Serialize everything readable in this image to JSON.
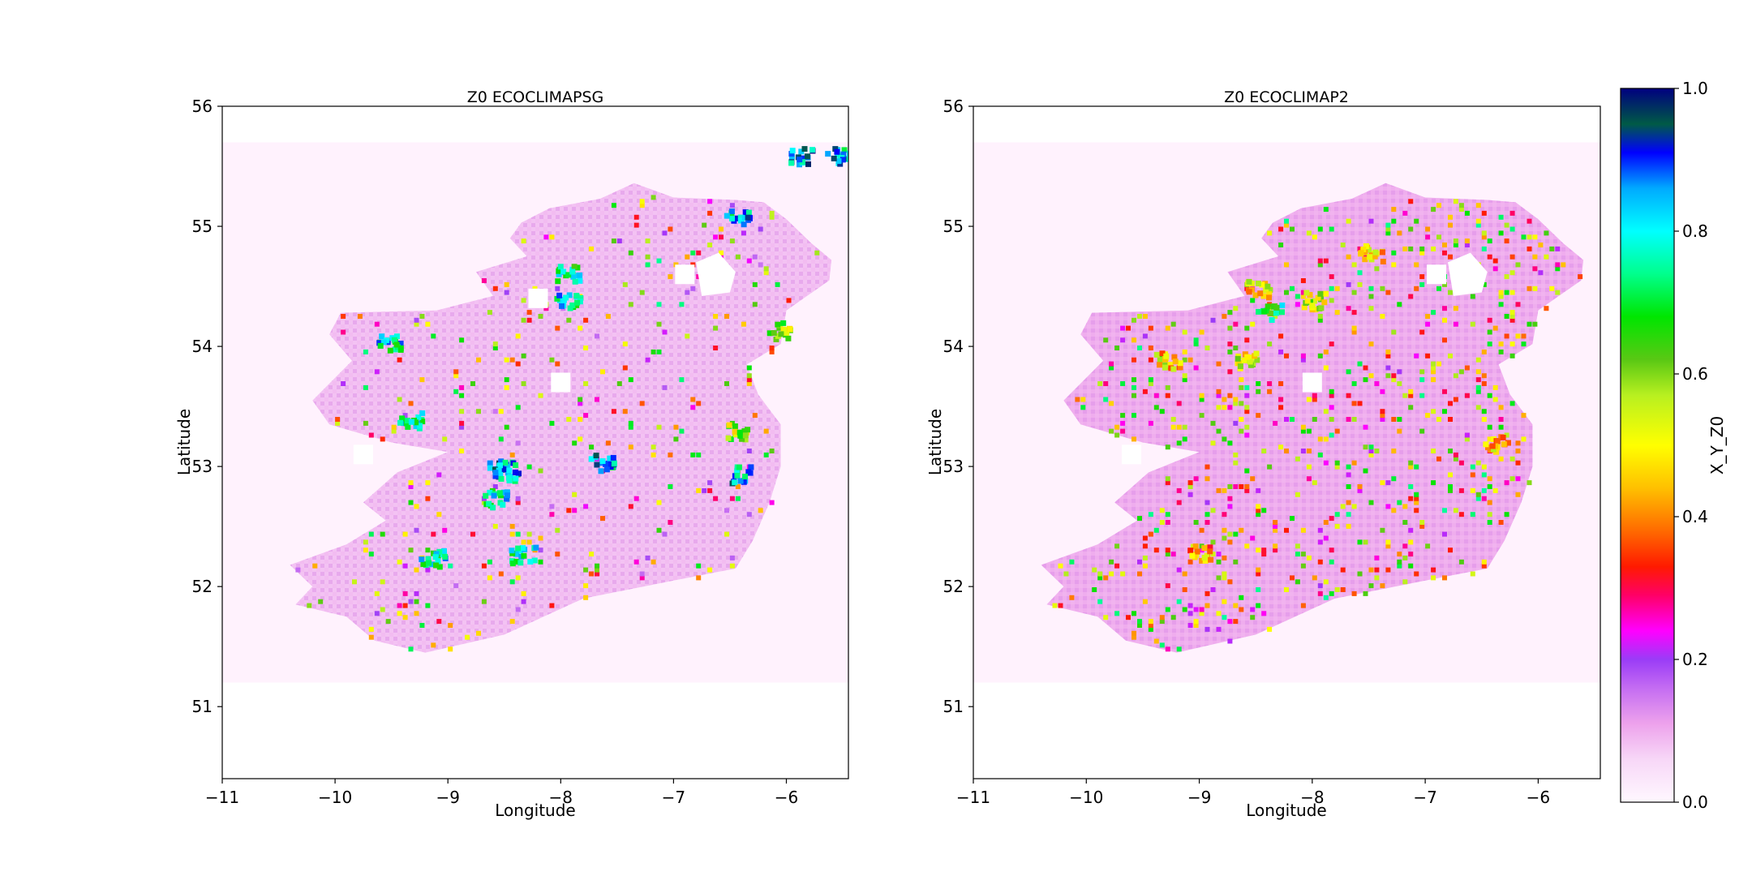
{
  "chart_data": [
    {
      "type": "heatmap",
      "title": "Z0 ECOCLIMAPSG",
      "xlabel": "Longitude",
      "ylabel": "Latitude",
      "xlim": [
        -11,
        -5.45
      ],
      "ylim": [
        50.4,
        56
      ],
      "xticks": [
        -11,
        -10,
        -9,
        -8,
        -7,
        -6
      ],
      "xtick_labels": [
        "−11",
        "−10",
        "−9",
        "−8",
        "−7",
        "−6"
      ],
      "yticks": [
        51,
        52,
        53,
        54,
        55,
        56
      ],
      "ytick_labels": [
        "51",
        "52",
        "53",
        "54",
        "55",
        "56"
      ],
      "data_extent": {
        "lon": [
          -11,
          -5.45
        ],
        "lat": [
          51.2,
          55.7
        ]
      },
      "typical_value": 0.08,
      "hotspots": [
        {
          "lon": -8.55,
          "lat": 53.0,
          "value": 0.98
        },
        {
          "lon": -8.5,
          "lat": 52.97,
          "value": 0.95
        },
        {
          "lon": -6.45,
          "lat": 53.3,
          "value": 0.7
        },
        {
          "lon": -6.4,
          "lat": 52.95,
          "value": 0.95
        },
        {
          "lon": -9.55,
          "lat": 54.05,
          "value": 0.9
        },
        {
          "lon": -9.35,
          "lat": 53.4,
          "value": 0.9
        },
        {
          "lon": -7.65,
          "lat": 53.05,
          "value": 0.95
        },
        {
          "lon": -6.45,
          "lat": 55.08,
          "value": 0.95
        },
        {
          "lon": -5.9,
          "lat": 55.6,
          "value": 1.0
        },
        {
          "lon": -5.55,
          "lat": 55.6,
          "value": 0.95
        },
        {
          "lon": -7.95,
          "lat": 54.4,
          "value": 0.9
        },
        {
          "lon": -7.95,
          "lat": 54.63,
          "value": 0.85
        },
        {
          "lon": -8.35,
          "lat": 52.28,
          "value": 0.9
        },
        {
          "lon": -9.15,
          "lat": 52.25,
          "value": 0.9
        },
        {
          "lon": -8.6,
          "lat": 52.75,
          "value": 0.9
        },
        {
          "lon": -6.1,
          "lat": 54.15,
          "value": 0.7
        }
      ],
      "holes": [
        {
          "lon": -6.9,
          "lat": 54.6
        },
        {
          "lon": -8.2,
          "lat": 54.4
        },
        {
          "lon": -8.0,
          "lat": 53.7
        },
        {
          "lon": -9.75,
          "lat": 53.1
        }
      ]
    },
    {
      "type": "heatmap",
      "title": "Z0 ECOCLIMAP2",
      "xlabel": "Longitude",
      "ylabel": "Latitude",
      "xlim": [
        -11,
        -5.45
      ],
      "ylim": [
        50.4,
        56
      ],
      "xticks": [
        -11,
        -10,
        -9,
        -8,
        -7,
        -6
      ],
      "xtick_labels": [
        "−11",
        "−10",
        "−9",
        "−8",
        "−7",
        "−6"
      ],
      "yticks": [
        51,
        52,
        53,
        54,
        55,
        56
      ],
      "ytick_labels": [
        "51",
        "52",
        "53",
        "54",
        "55",
        "56"
      ],
      "data_extent": {
        "lon": [
          -11,
          -5.45
        ],
        "lat": [
          51.2,
          55.7
        ]
      },
      "typical_value": 0.1,
      "hotspots": [
        {
          "lon": -8.0,
          "lat": 54.4,
          "value": 0.65
        },
        {
          "lon": -8.5,
          "lat": 54.5,
          "value": 0.6
        },
        {
          "lon": -7.5,
          "lat": 54.8,
          "value": 0.6
        },
        {
          "lon": -9.3,
          "lat": 53.9,
          "value": 0.6
        },
        {
          "lon": -8.6,
          "lat": 53.9,
          "value": 0.65
        },
        {
          "lon": -6.4,
          "lat": 53.2,
          "value": 0.6
        },
        {
          "lon": -9.0,
          "lat": 52.3,
          "value": 0.55
        },
        {
          "lon": -8.4,
          "lat": 54.3,
          "value": 0.85
        }
      ],
      "holes": [
        {
          "lon": -6.9,
          "lat": 54.6
        },
        {
          "lon": -9.6,
          "lat": 53.1
        },
        {
          "lon": -8.0,
          "lat": 53.7
        }
      ]
    }
  ],
  "colorbar": {
    "label": "X_Y_Z0",
    "colormap": "gist_ncar_r",
    "range": [
      0.0,
      1.0
    ],
    "ticks": [
      0.0,
      0.2,
      0.4,
      0.6,
      0.8,
      1.0
    ],
    "tick_labels": [
      "0.0",
      "0.2",
      "0.4",
      "0.6",
      "0.8",
      "1.0"
    ]
  },
  "colors": {
    "background_field": "#fff2fd",
    "land_base": "#e9a2ea",
    "axis": "#000000"
  }
}
